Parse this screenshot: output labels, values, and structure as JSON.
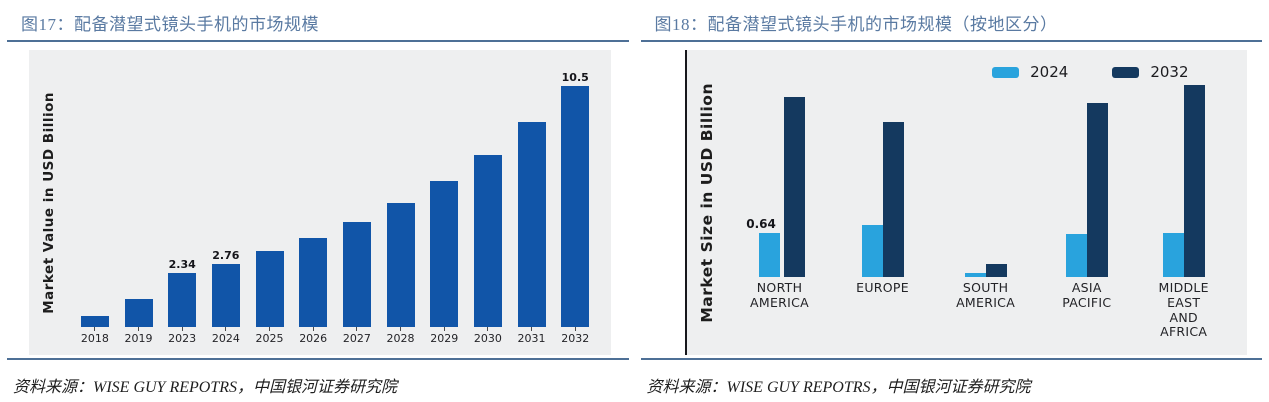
{
  "figures": [
    {
      "title": "图17：配备潜望式镜头手机的市场规模",
      "source_prefix": "资料来源：",
      "source_body": "WISE GUY REPOTRS，中国银河证券研究院"
    },
    {
      "title": "图18：配备潜望式镜头手机的市场规模（按地区分）",
      "source_prefix": "资料来源：",
      "source_body": "WISE GUY REPOTRS，中国银河证券研究院"
    }
  ],
  "chart_data": [
    {
      "type": "bar",
      "title": "配备潜望式镜头手机的市场规模",
      "xlabel": "",
      "ylabel": "Market Value in USD Billion",
      "ylim": [
        0,
        11
      ],
      "grid": false,
      "legend": false,
      "categories": [
        "2018",
        "2019",
        "2023",
        "2024",
        "2025",
        "2026",
        "2027",
        "2028",
        "2029",
        "2030",
        "2031",
        "2032"
      ],
      "values": [
        0.5,
        1.2,
        2.34,
        2.76,
        3.3,
        3.85,
        4.55,
        5.4,
        6.35,
        7.5,
        8.9,
        10.5
      ],
      "data_labels": [
        "",
        "",
        "2.34",
        "2.76",
        "",
        "",
        "",
        "",
        "",
        "",
        "",
        "10.5"
      ],
      "bar_color": "#1155a8",
      "panel_bg": "#eeeff0"
    },
    {
      "type": "bar",
      "title": "配备潜望式镜头手机的市场规模（按地区分）",
      "xlabel": "",
      "ylabel": "Market Size in USD Billion",
      "ylim": [
        0,
        3
      ],
      "grid": false,
      "legend_position": "top-right",
      "categories": [
        "NORTH AMERICA",
        "EUROPE",
        "SOUTH AMERICA",
        "ASIA PACIFIC",
        "MIDDLE EAST AND AFRICA"
      ],
      "series": [
        {
          "name": "2024",
          "color": "#29a3dd",
          "values": [
            0.64,
            0.76,
            0.06,
            0.63,
            0.65
          ],
          "data_labels": [
            "0.64",
            "",
            "",
            "",
            ""
          ]
        },
        {
          "name": "2032",
          "color": "#14395f",
          "values": [
            2.65,
            2.28,
            0.19,
            2.56,
            2.82
          ],
          "data_labels": [
            "",
            "",
            "",
            "",
            ""
          ]
        }
      ],
      "panel_bg": "#eeeff0"
    }
  ]
}
